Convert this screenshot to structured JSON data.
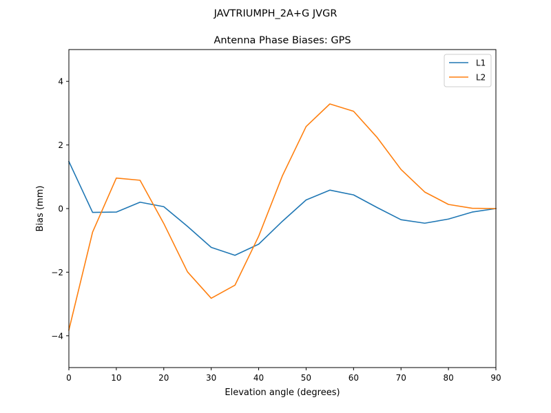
{
  "figure": {
    "suptitle": "JAVTRIUMPH_2A+G JVGR"
  },
  "chart_data": {
    "type": "line",
    "title": "Antenna Phase Biases: GPS",
    "xlabel": "Elevation angle (degrees)",
    "ylabel": "Bias (mm)",
    "xlim": [
      0,
      90
    ],
    "ylim": [
      -5,
      5
    ],
    "xticks": [
      0,
      10,
      20,
      30,
      40,
      50,
      60,
      70,
      80,
      90
    ],
    "yticks": [
      -4,
      -2,
      0,
      2,
      4
    ],
    "xtick_labels": [
      "0",
      "10",
      "20",
      "30",
      "40",
      "50",
      "60",
      "70",
      "80",
      "90"
    ],
    "ytick_labels": [
      "−4",
      "−2",
      "0",
      "2",
      "4"
    ],
    "grid": false,
    "legend_position": "top-right",
    "x": [
      0,
      5,
      10,
      15,
      20,
      25,
      30,
      35,
      40,
      45,
      50,
      55,
      60,
      65,
      70,
      75,
      80,
      85,
      90
    ],
    "series": [
      {
        "name": "L1",
        "color": "#1f77b4",
        "values": [
          1.48,
          -0.12,
          -0.11,
          0.2,
          0.06,
          -0.56,
          -1.22,
          -1.47,
          -1.12,
          -0.4,
          0.27,
          0.58,
          0.43,
          0.03,
          -0.35,
          -0.46,
          -0.33,
          -0.11,
          0.0
        ]
      },
      {
        "name": "L2",
        "color": "#ff7f0e",
        "values": [
          -3.82,
          -0.74,
          0.96,
          0.89,
          -0.47,
          -1.99,
          -2.82,
          -2.41,
          -0.87,
          1.03,
          2.58,
          3.29,
          3.06,
          2.23,
          1.23,
          0.52,
          0.13,
          0.01,
          0.0
        ]
      }
    ]
  }
}
